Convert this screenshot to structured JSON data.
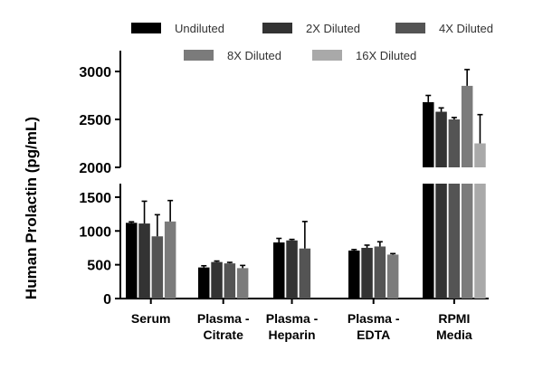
{
  "chart_data": {
    "type": "bar",
    "title": "",
    "xlabel": "",
    "ylabel": "Human Prolactin (pg/mL)",
    "axis_break": {
      "lower_ylim": [
        0,
        1700
      ],
      "upper_ylim": [
        2000,
        3100
      ]
    },
    "lower_ticks": [
      "0",
      "500",
      "1000",
      "1500"
    ],
    "upper_ticks": [
      "2000",
      "2500",
      "3000"
    ],
    "categories": [
      [
        "Serum"
      ],
      [
        "Plasma -",
        "Citrate"
      ],
      [
        "Plasma -",
        "Heparin"
      ],
      [
        "Plasma -",
        "EDTA"
      ],
      [
        "RPMI",
        "Media"
      ]
    ],
    "series": [
      {
        "name": "Undiluted",
        "color": "#000000",
        "values": [
          1120,
          460,
          830,
          710,
          2680
        ],
        "errors": [
          15,
          25,
          60,
          15,
          70
        ]
      },
      {
        "name": "2X Diluted",
        "color": "#333333",
        "values": [
          1110,
          540,
          860,
          750,
          2580
        ],
        "errors": [
          330,
          15,
          15,
          40,
          40
        ]
      },
      {
        "name": "4X Diluted",
        "color": "#545454",
        "values": [
          920,
          520,
          740,
          770,
          2500
        ],
        "errors": [
          320,
          15,
          400,
          70,
          20
        ]
      },
      {
        "name": "8X Diluted",
        "color": "#7b7b7b",
        "values": [
          1140,
          450,
          null,
          650,
          2850
        ],
        "errors": [
          310,
          40,
          null,
          15,
          170
        ]
      },
      {
        "name": "16X Diluted",
        "color": "#a9a9a9",
        "values": [
          null,
          null,
          null,
          null,
          2250
        ],
        "errors": [
          null,
          null,
          null,
          null,
          300
        ]
      }
    ],
    "legend": {
      "position": "top",
      "rows": [
        [
          0,
          1,
          2
        ],
        [
          3,
          4
        ]
      ]
    }
  }
}
